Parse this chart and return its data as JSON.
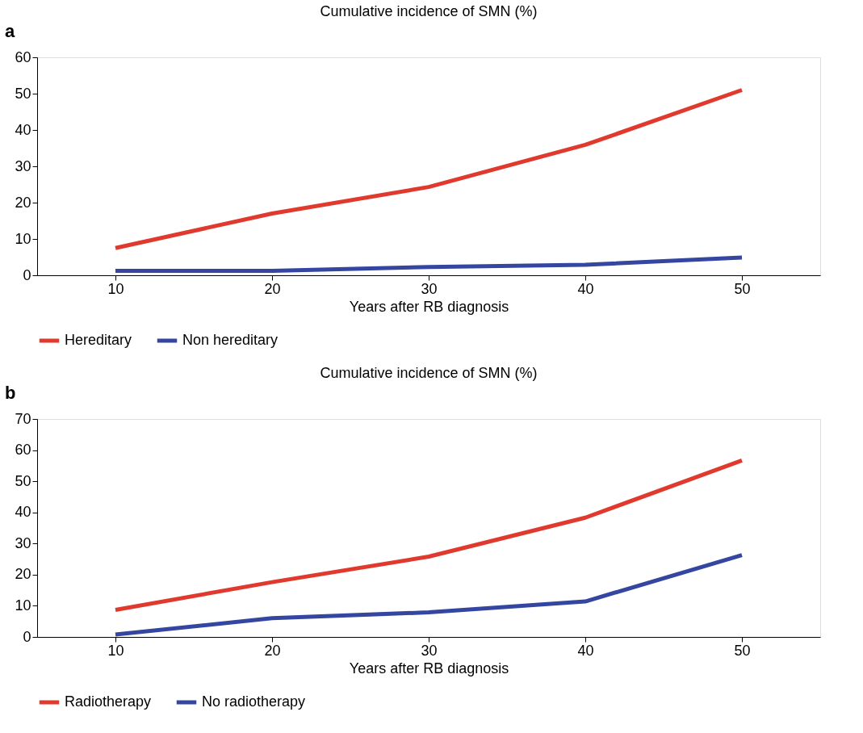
{
  "chart_data": [
    {
      "type": "line",
      "title": "Cumulative incidence of SMN (%)",
      "xlabel": "Years after RB diagnosis",
      "annotations": [
        "a"
      ],
      "categories": [
        "10",
        "20",
        "30",
        "40",
        "50"
      ],
      "ylim": [
        0,
        60
      ],
      "yticks": [
        0,
        10,
        20,
        30,
        40,
        50,
        60
      ],
      "grid": false,
      "legend": "bottom",
      "marker": "none",
      "line_style": "solid",
      "series": [
        {
          "name": "Hereditary",
          "color": "#e03a2f",
          "values": [
            7.5,
            17,
            24.3,
            35.9,
            51
          ]
        },
        {
          "name": "Non hereditary",
          "color": "#3446a0",
          "values": [
            1.2,
            1.2,
            2.3,
            2.9,
            4.9
          ]
        }
      ]
    },
    {
      "type": "line",
      "title": "Cumulative incidence of SMN (%)",
      "xlabel": "Years after RB diagnosis",
      "annotations": [
        "b"
      ],
      "categories": [
        "10",
        "20",
        "30",
        "40",
        "50"
      ],
      "ylim": [
        0,
        70
      ],
      "yticks": [
        0,
        10,
        20,
        30,
        40,
        50,
        60,
        70
      ],
      "grid": false,
      "legend": "bottom",
      "marker": "none",
      "line_style": "solid",
      "series": [
        {
          "name": "Radiotherapy",
          "color": "#e03a2f",
          "values": [
            8.7,
            17.6,
            25.8,
            38.3,
            56.7
          ]
        },
        {
          "name": "No radiotherapy",
          "color": "#3446a0",
          "values": [
            0.8,
            6,
            7.9,
            11.4,
            26.3
          ]
        }
      ]
    }
  ]
}
